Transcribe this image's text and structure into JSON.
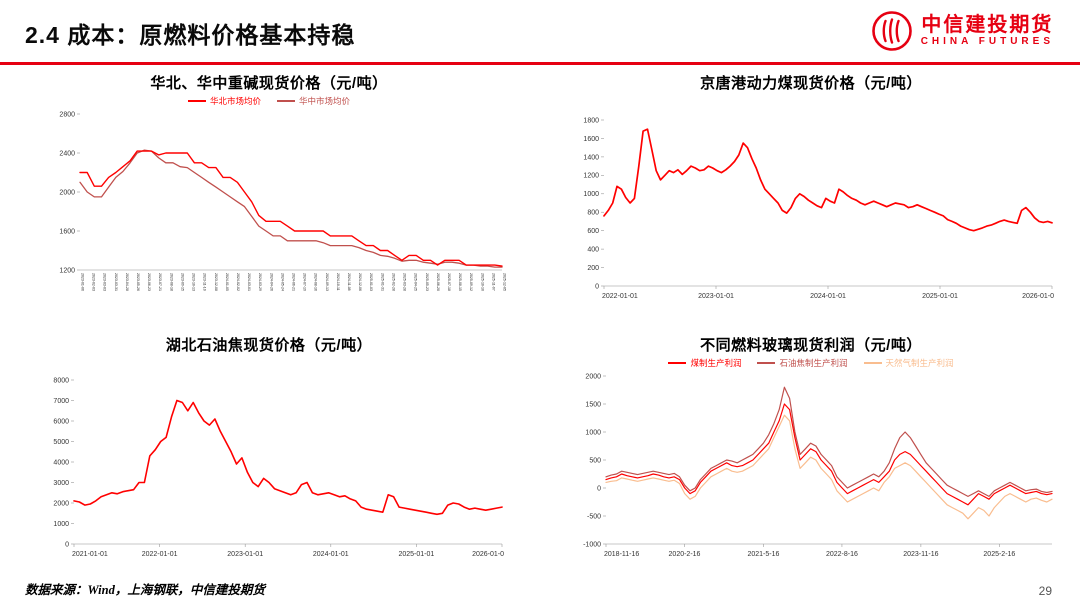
{
  "page": {
    "title": "2.4 成本：原燃料价格基本持稳",
    "footer_source": "数据来源：Wind，上海钢联，中信建投期货",
    "page_number": "29",
    "accent_color": "#e60012"
  },
  "logo": {
    "name_cn": "中信建投期货",
    "name_en": "CHINA FUTURES"
  },
  "chart_data": [
    {
      "type": "line",
      "title": "华北、华中重碱现货价格（元/吨）",
      "ylim": [
        1200,
        2800
      ],
      "yticks": [
        1200,
        1600,
        2000,
        2400,
        2800
      ],
      "legend": true,
      "legend_position": "top",
      "grid": false,
      "x_dense_labels": [
        "2023-01-06",
        "2023-02-03",
        "2023-03-03",
        "2023-03-31",
        "2023-04-28",
        "2023-05-26",
        "2023-06-23",
        "2023-07-21",
        "2023-08-18",
        "2023-09-15",
        "2023-10-13",
        "2023-11-10",
        "2023-12-08",
        "2024-01-05",
        "2024-02-02",
        "2024-03-01",
        "2024-03-29",
        "2024-04-26",
        "2024-05-24",
        "2024-06-21",
        "2024-07-19",
        "2024-08-16",
        "2024-09-13",
        "2024-10-11",
        "2024-11-08",
        "2024-12-06",
        "2025-01-03",
        "2025-01-31",
        "2025-02-28",
        "2025-03-28",
        "2025-04-25",
        "2025-05-23",
        "2025-06-20",
        "2025-07-18",
        "2025-08-15",
        "2025-09-12",
        "2025-10-10",
        "2025-11-07",
        "2025-12-05"
      ],
      "series": [
        {
          "name": "华北市场均价",
          "color": "#ff0000",
          "width": 1.4,
          "values": [
            2200,
            2200,
            2060,
            2060,
            2150,
            2200,
            2260,
            2320,
            2420,
            2420,
            2420,
            2380,
            2400,
            2400,
            2400,
            2400,
            2300,
            2300,
            2250,
            2250,
            2150,
            2150,
            2100,
            2000,
            1900,
            1760,
            1700,
            1700,
            1700,
            1650,
            1600,
            1600,
            1600,
            1600,
            1600,
            1550,
            1550,
            1550,
            1550,
            1500,
            1450,
            1450,
            1400,
            1400,
            1350,
            1300,
            1350,
            1350,
            1300,
            1300,
            1250,
            1300,
            1300,
            1300,
            1250,
            1250,
            1250,
            1250,
            1250,
            1240
          ]
        },
        {
          "name": "华中市场均价",
          "color": "#c0504d",
          "width": 1.3,
          "values": [
            2100,
            2000,
            1950,
            1950,
            2050,
            2150,
            2210,
            2300,
            2400,
            2430,
            2420,
            2350,
            2300,
            2300,
            2260,
            2250,
            2200,
            2150,
            2100,
            2050,
            2000,
            1950,
            1900,
            1850,
            1750,
            1650,
            1600,
            1550,
            1550,
            1500,
            1500,
            1500,
            1500,
            1500,
            1480,
            1450,
            1450,
            1450,
            1450,
            1430,
            1400,
            1380,
            1350,
            1340,
            1320,
            1290,
            1300,
            1300,
            1280,
            1270,
            1260,
            1280,
            1280,
            1270,
            1250,
            1250,
            1240,
            1240,
            1230,
            1230
          ]
        }
      ]
    },
    {
      "type": "line",
      "title": "京唐港动力煤现货价格（元/吨）",
      "ylim": [
        0,
        1800
      ],
      "yticks": [
        0,
        200,
        400,
        600,
        800,
        1000,
        1200,
        1400,
        1600,
        1800
      ],
      "legend": false,
      "grid": false,
      "x_ticks": [
        {
          "label": "2022-01-01",
          "pos": 0
        },
        {
          "label": "2023-01-01",
          "pos": 0.25
        },
        {
          "label": "2024-01-01",
          "pos": 0.5
        },
        {
          "label": "2025-01-01",
          "pos": 0.75
        },
        {
          "label": "2026-01-0",
          "pos": 1
        }
      ],
      "series": [
        {
          "name": "",
          "color": "#ff0000",
          "width": 1.7,
          "values": [
            760,
            820,
            900,
            1080,
            1050,
            960,
            900,
            950,
            1300,
            1680,
            1700,
            1480,
            1250,
            1150,
            1200,
            1250,
            1230,
            1260,
            1210,
            1250,
            1300,
            1280,
            1250,
            1260,
            1300,
            1280,
            1250,
            1230,
            1260,
            1300,
            1350,
            1420,
            1550,
            1500,
            1380,
            1280,
            1150,
            1050,
            1000,
            950,
            900,
            820,
            790,
            850,
            950,
            1000,
            970,
            930,
            900,
            870,
            850,
            950,
            920,
            900,
            1050,
            1020,
            980,
            950,
            930,
            900,
            880,
            900,
            920,
            900,
            880,
            860,
            880,
            900,
            890,
            880,
            850,
            860,
            880,
            860,
            840,
            820,
            800,
            780,
            760,
            720,
            700,
            680,
            650,
            630,
            610,
            600,
            615,
            630,
            650,
            660,
            680,
            700,
            715,
            700,
            690,
            680,
            820,
            850,
            800,
            740,
            700,
            690,
            700,
            685
          ]
        }
      ]
    },
    {
      "type": "line",
      "title": "湖北石油焦现货价格（元/吨）",
      "ylim": [
        0,
        8000
      ],
      "yticks": [
        0,
        1000,
        2000,
        3000,
        4000,
        5000,
        6000,
        7000,
        8000
      ],
      "legend": false,
      "grid": false,
      "x_ticks": [
        {
          "label": "2021-01-01",
          "pos": 0
        },
        {
          "label": "2022-01-01",
          "pos": 0.2
        },
        {
          "label": "2023-01-01",
          "pos": 0.4
        },
        {
          "label": "2024-01-01",
          "pos": 0.6
        },
        {
          "label": "2025-01-01",
          "pos": 0.8
        },
        {
          "label": "2026-01-0",
          "pos": 1
        }
      ],
      "series": [
        {
          "name": "",
          "color": "#ff0000",
          "width": 1.6,
          "values": [
            2100,
            2050,
            1900,
            1950,
            2100,
            2300,
            2400,
            2500,
            2450,
            2550,
            2600,
            2650,
            3000,
            3000,
            4300,
            4600,
            5000,
            5200,
            6200,
            7000,
            6900,
            6500,
            6900,
            6400,
            6000,
            5800,
            6100,
            5500,
            5000,
            4500,
            3900,
            4200,
            3500,
            3000,
            2800,
            3200,
            3000,
            2700,
            2600,
            2500,
            2400,
            2500,
            2900,
            3000,
            2500,
            2400,
            2450,
            2500,
            2400,
            2300,
            2350,
            2200,
            2100,
            1800,
            1700,
            1650,
            1600,
            1550,
            2400,
            2300,
            1800,
            1750,
            1700,
            1650,
            1600,
            1550,
            1500,
            1450,
            1500,
            1900,
            2000,
            1950,
            1800,
            1700,
            1750,
            1700,
            1650,
            1700,
            1750,
            1800
          ]
        }
      ]
    },
    {
      "type": "line",
      "title": "不同燃料玻璃现货利润（元/吨）",
      "ylim": [
        -1000,
        2000
      ],
      "yticks": [
        -1000,
        -500,
        0,
        500,
        1000,
        1500,
        2000
      ],
      "legend": true,
      "legend_position": "top",
      "grid": false,
      "x_ticks": [
        {
          "label": "2018-11-16",
          "pos": 0
        },
        {
          "label": "2020-2-16",
          "pos": 0.176
        },
        {
          "label": "2021-5-16",
          "pos": 0.353
        },
        {
          "label": "2022-8-16",
          "pos": 0.529
        },
        {
          "label": "2023-11-16",
          "pos": 0.706
        },
        {
          "label": "2025-2-16",
          "pos": 0.882
        }
      ],
      "series": [
        {
          "name": "煤制生产利润",
          "color": "#ff0000",
          "width": 1.2,
          "values": [
            150,
            180,
            200,
            250,
            220,
            200,
            180,
            200,
            220,
            250,
            230,
            200,
            180,
            200,
            150,
            0,
            -100,
            -50,
            100,
            200,
            300,
            350,
            400,
            450,
            400,
            380,
            400,
            450,
            500,
            600,
            700,
            800,
            1000,
            1200,
            1500,
            1400,
            900,
            500,
            600,
            700,
            650,
            500,
            400,
            300,
            100,
            0,
            -100,
            -50,
            0,
            50,
            100,
            150,
            100,
            200,
            300,
            500,
            600,
            650,
            600,
            500,
            400,
            300,
            200,
            100,
            0,
            -100,
            -150,
            -200,
            -250,
            -300,
            -200,
            -100,
            -150,
            -200,
            -100,
            -50,
            0,
            50,
            0,
            -50,
            -100,
            -80,
            -60,
            -100,
            -120,
            -100
          ]
        },
        {
          "name": "石油焦制生产利润",
          "color": "#c0504d",
          "width": 1.2,
          "values": [
            200,
            230,
            250,
            300,
            280,
            260,
            240,
            260,
            280,
            300,
            280,
            260,
            240,
            260,
            200,
            50,
            -50,
            0,
            150,
            250,
            350,
            400,
            450,
            500,
            480,
            450,
            500,
            550,
            600,
            700,
            800,
            950,
            1150,
            1400,
            1800,
            1600,
            1000,
            600,
            700,
            800,
            750,
            600,
            500,
            400,
            200,
            100,
            0,
            50,
            100,
            150,
            200,
            250,
            200,
            300,
            450,
            700,
            900,
            1000,
            900,
            750,
            600,
            450,
            350,
            250,
            150,
            50,
            0,
            -50,
            -100,
            -150,
            -100,
            -50,
            -100,
            -150,
            -50,
            0,
            50,
            100,
            50,
            0,
            -50,
            -30,
            -20,
            -60,
            -80,
            -60
          ]
        },
        {
          "name": "天然气制生产利润",
          "color": "#f9bd8f",
          "width": 1.2,
          "values": [
            100,
            120,
            130,
            180,
            160,
            140,
            120,
            140,
            160,
            180,
            160,
            140,
            120,
            140,
            80,
            -100,
            -200,
            -150,
            0,
            100,
            200,
            250,
            300,
            350,
            300,
            280,
            300,
            350,
            400,
            500,
            600,
            700,
            900,
            1100,
            1300,
            1200,
            700,
            350,
            450,
            550,
            500,
            350,
            250,
            150,
            -50,
            -150,
            -250,
            -200,
            -150,
            -100,
            -50,
            0,
            -50,
            100,
            200,
            350,
            400,
            450,
            400,
            300,
            200,
            100,
            0,
            -100,
            -200,
            -300,
            -350,
            -400,
            -450,
            -550,
            -450,
            -350,
            -400,
            -500,
            -350,
            -250,
            -150,
            -100,
            -150,
            -200,
            -250,
            -200,
            -180,
            -220,
            -250,
            -200
          ]
        }
      ]
    }
  ]
}
